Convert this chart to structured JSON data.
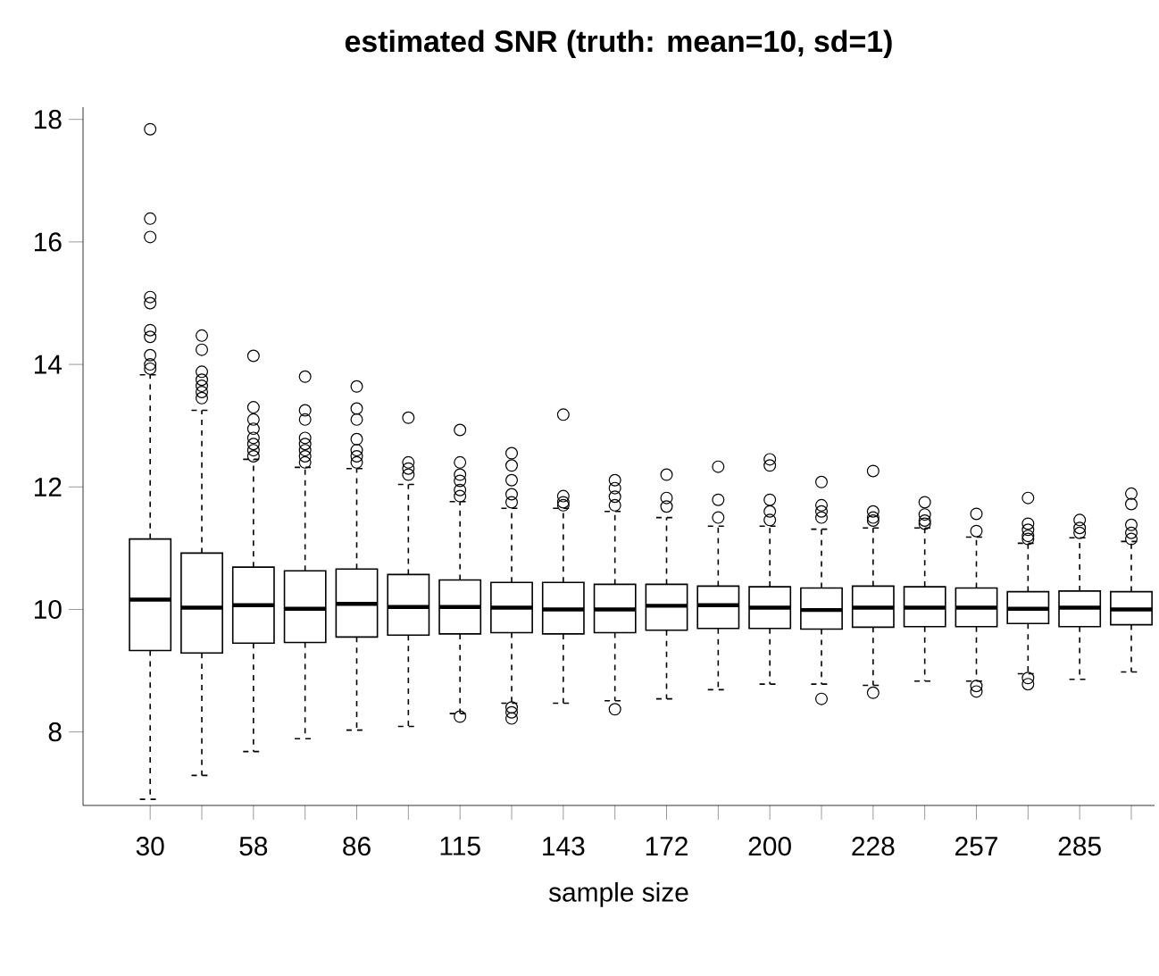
{
  "chart_data": {
    "type": "box",
    "title": "estimated SNR (truth: mean=10, sd=1)",
    "xlabel": "sample size",
    "marker": "circle",
    "categories": [
      "30",
      null,
      "58",
      null,
      "86",
      null,
      "115",
      null,
      "143",
      null,
      "172",
      null,
      "200",
      null,
      "228",
      null,
      "257",
      null,
      "285",
      null
    ],
    "ylim": [
      6.8,
      18.2
    ],
    "yticks": [
      8,
      10,
      12,
      14,
      16,
      18
    ],
    "boxes": [
      {
        "low": 6.9,
        "q1": 9.33,
        "median": 10.16,
        "q3": 11.15,
        "high": 13.83,
        "outliers": [
          17.84,
          16.38,
          16.08,
          15.1,
          15.0,
          14.56,
          14.45,
          14.15,
          14.0,
          13.93
        ]
      },
      {
        "low": 7.29,
        "q1": 9.29,
        "median": 10.03,
        "q3": 10.92,
        "high": 13.25,
        "outliers": [
          14.47,
          14.24,
          13.88,
          13.75,
          13.65,
          13.55,
          13.45
        ]
      },
      {
        "low": 7.68,
        "q1": 9.45,
        "median": 10.07,
        "q3": 10.69,
        "high": 12.45,
        "outliers": [
          14.14,
          13.3,
          13.1,
          12.95,
          12.8,
          12.7,
          12.6,
          12.5
        ]
      },
      {
        "low": 7.89,
        "q1": 9.46,
        "median": 10.01,
        "q3": 10.63,
        "high": 12.32,
        "outliers": [
          13.8,
          13.25,
          13.1,
          12.8,
          12.7,
          12.6,
          12.5,
          12.4
        ]
      },
      {
        "low": 8.03,
        "q1": 9.55,
        "median": 10.09,
        "q3": 10.66,
        "high": 12.3,
        "outliers": [
          13.64,
          13.28,
          13.1,
          12.78,
          12.6,
          12.5,
          12.4
        ]
      },
      {
        "low": 8.09,
        "q1": 9.58,
        "median": 10.04,
        "q3": 10.57,
        "high": 12.04,
        "outliers": [
          13.13,
          12.4,
          12.3,
          12.2
        ]
      },
      {
        "low": 8.3,
        "q1": 9.6,
        "median": 10.04,
        "q3": 10.48,
        "high": 11.76,
        "outliers": [
          12.93,
          12.4,
          12.2,
          12.1,
          11.95,
          11.85,
          8.25
        ]
      },
      {
        "low": 8.47,
        "q1": 9.62,
        "median": 10.03,
        "q3": 10.44,
        "high": 11.65,
        "outliers": [
          12.55,
          12.35,
          12.11,
          11.88,
          11.75,
          8.4,
          8.32,
          8.22
        ]
      },
      {
        "low": 8.47,
        "q1": 9.6,
        "median": 10.0,
        "q3": 10.44,
        "high": 11.65,
        "outliers": [
          13.18,
          11.85,
          11.75,
          11.7
        ]
      },
      {
        "low": 8.51,
        "q1": 9.62,
        "median": 10.0,
        "q3": 10.41,
        "high": 11.6,
        "outliers": [
          12.11,
          11.98,
          11.84,
          11.7,
          8.37
        ]
      },
      {
        "low": 8.54,
        "q1": 9.66,
        "median": 10.06,
        "q3": 10.41,
        "high": 11.5,
        "outliers": [
          12.2,
          11.82,
          11.68
        ]
      },
      {
        "low": 8.69,
        "q1": 9.69,
        "median": 10.07,
        "q3": 10.38,
        "high": 11.36,
        "outliers": [
          12.33,
          11.79,
          11.5
        ]
      },
      {
        "low": 8.78,
        "q1": 9.69,
        "median": 10.03,
        "q3": 10.37,
        "high": 11.36,
        "outliers": [
          12.45,
          12.35,
          11.79,
          11.6,
          11.46
        ]
      },
      {
        "low": 8.78,
        "q1": 9.68,
        "median": 9.99,
        "q3": 10.35,
        "high": 11.31,
        "outliers": [
          12.08,
          11.7,
          11.6,
          11.5,
          8.54
        ]
      },
      {
        "low": 8.76,
        "q1": 9.71,
        "median": 10.03,
        "q3": 10.38,
        "high": 11.33,
        "outliers": [
          12.26,
          11.6,
          11.5,
          11.45,
          8.64
        ]
      },
      {
        "low": 8.83,
        "q1": 9.72,
        "median": 10.03,
        "q3": 10.37,
        "high": 11.33,
        "outliers": [
          11.75,
          11.55,
          11.45,
          11.4
        ]
      },
      {
        "low": 8.83,
        "q1": 9.72,
        "median": 10.03,
        "q3": 10.35,
        "high": 11.18,
        "outliers": [
          11.56,
          11.28,
          8.75,
          8.66
        ]
      },
      {
        "low": 8.95,
        "q1": 9.77,
        "median": 10.01,
        "q3": 10.29,
        "high": 11.08,
        "outliers": [
          11.82,
          11.4,
          11.3,
          11.2,
          11.15,
          8.88,
          8.78
        ]
      },
      {
        "low": 8.86,
        "q1": 9.72,
        "median": 10.03,
        "q3": 10.3,
        "high": 11.17,
        "outliers": [
          11.46,
          11.33,
          11.25
        ]
      },
      {
        "low": 8.98,
        "q1": 9.75,
        "median": 10.0,
        "q3": 10.29,
        "high": 11.11,
        "outliers": [
          11.89,
          11.72,
          11.38,
          11.25,
          11.15
        ]
      }
    ]
  }
}
